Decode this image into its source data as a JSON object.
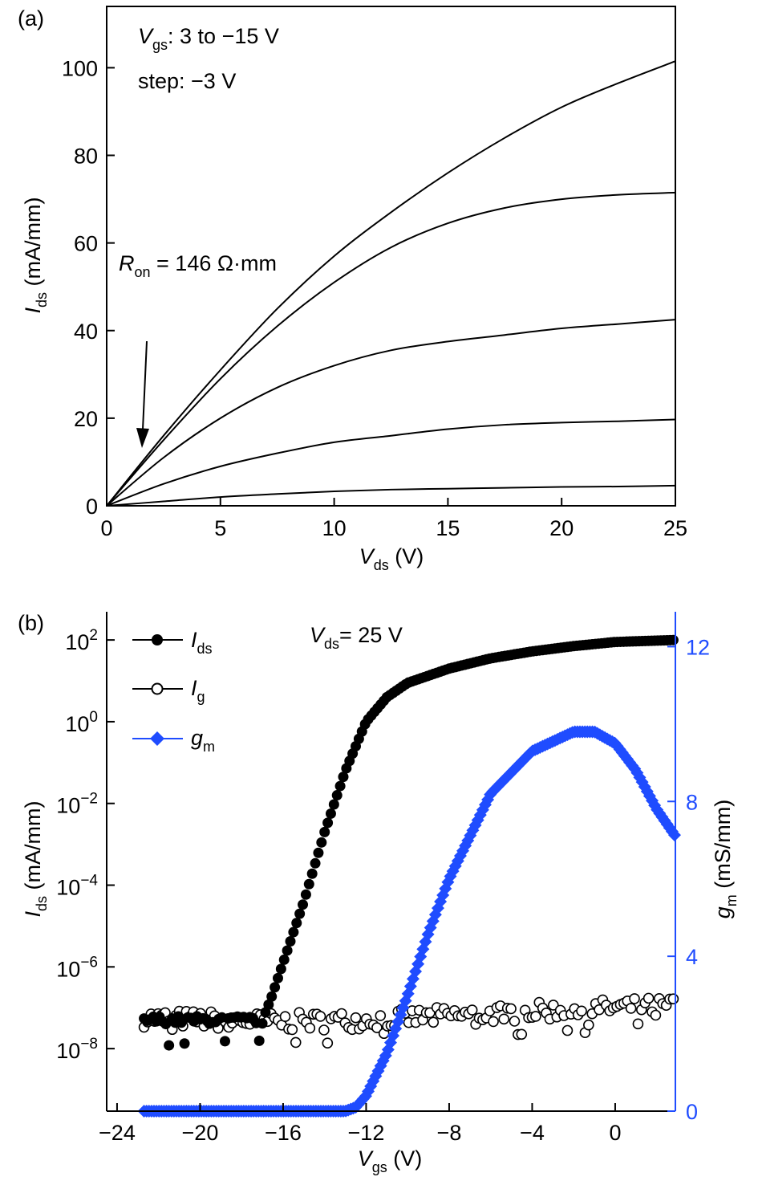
{
  "chart_data": [
    {
      "panel_label": "(a)",
      "type": "line",
      "xlabel": {
        "main": "V",
        "sub": "ds",
        "unit": " (V)"
      },
      "ylabel": {
        "main": "I",
        "sub": "ds",
        "unit": " (mA/mm)"
      },
      "xlim": [
        0,
        25
      ],
      "ylim": [
        0,
        114
      ],
      "xticks": [
        "0",
        "5",
        "10",
        "15",
        "20",
        "25"
      ],
      "yticks": [
        "0",
        "20",
        "40",
        "60",
        "80",
        "100"
      ],
      "annotation_vgs": {
        "main": "V",
        "sub": "gs",
        "rest": ": 3 to −15 V"
      },
      "annotation_step": "step: −3 V",
      "annotation_ron": {
        "main": "R",
        "sub": "on",
        "rest": " = 146 Ω·mm"
      },
      "x": [
        0,
        2.5,
        5,
        7.5,
        10,
        12.5,
        15,
        17.5,
        20,
        22.5,
        25
      ],
      "series": [
        {
          "name": "Vgs=3",
          "values": [
            0,
            16,
            31,
            45,
            57,
            67,
            76,
            84,
            91,
            96.5,
            101.5
          ]
        },
        {
          "name": "Vgs=0",
          "values": [
            0,
            15,
            29,
            41,
            51,
            59,
            64.5,
            68,
            70,
            71,
            71.5
          ]
        },
        {
          "name": "Vgs=-3",
          "values": [
            0,
            11,
            20,
            27,
            32,
            35.5,
            37.5,
            39,
            40.5,
            41.5,
            42.5
          ]
        },
        {
          "name": "Vgs=-6",
          "values": [
            0,
            5,
            9,
            12,
            14.5,
            16,
            17.5,
            18.5,
            19,
            19.3,
            19.7
          ]
        },
        {
          "name": "Vgs=-9",
          "values": [
            0,
            1,
            2,
            2.7,
            3.3,
            3.7,
            3.9,
            4.1,
            4.3,
            4.4,
            4.6
          ]
        },
        {
          "name": "Vgs=-12",
          "values": [
            0,
            0,
            0,
            0,
            0,
            0,
            0,
            0,
            0,
            0,
            0
          ]
        },
        {
          "name": "Vgs=-15",
          "values": [
            0,
            0,
            0,
            0,
            0,
            0,
            0,
            0,
            0,
            0,
            0
          ]
        }
      ]
    },
    {
      "panel_label": "(b)",
      "type": "scatter",
      "xlabel": {
        "main": "V",
        "sub": "gs",
        "unit": " (V)"
      },
      "ylabel_left": {
        "main": "I",
        "sub": "ds",
        "unit": " (mA/mm)"
      },
      "ylabel_right": {
        "main": "g",
        "sub": "m",
        "unit": " (mS/mm)"
      },
      "xlim": [
        -24.5,
        2.9
      ],
      "ylim_left_log10": [
        -9.53,
        2.69
      ],
      "ylim_right": [
        0,
        12.9
      ],
      "xticks": [
        "−24",
        "−20",
        "−16",
        "−12",
        "−8",
        "−4",
        "0"
      ],
      "xtick_values": [
        -24,
        -20,
        -16,
        -12,
        -8,
        -4,
        0
      ],
      "yticks_left_exp": [
        "2",
        "0",
        "−2",
        "−4",
        "−6",
        "−8"
      ],
      "ytick_left_values": [
        2,
        0,
        -2,
        -4,
        -6,
        -8
      ],
      "ytick_left_base": "10",
      "yticks_right": [
        "0",
        "4",
        "8",
        "12"
      ],
      "annotation": {
        "main": "V",
        "sub": "ds",
        "rest": "= 25 V"
      },
      "colors": {
        "gm": "#1f4cff",
        "axis_right": "#1f4cff"
      },
      "series": [
        {
          "name": "Ids",
          "legend": {
            "main": "I",
            "sub": "ds"
          },
          "axis": "left",
          "marker": "filled-circle",
          "x": [
            -22.7,
            -17,
            -16.6,
            -16,
            -15,
            -14,
            -13,
            -12,
            -11,
            -10,
            -8,
            -6,
            -4,
            -2,
            0,
            2.9
          ],
          "log10_values": [
            -7.3,
            -7.3,
            -6.8,
            -5.9,
            -4.4,
            -2.7,
            -1.2,
            0,
            0.6,
            0.95,
            1.3,
            1.55,
            1.72,
            1.85,
            1.95,
            2.0
          ]
        },
        {
          "name": "Ig",
          "legend": {
            "main": "I",
            "sub": "g"
          },
          "axis": "left",
          "marker": "open-circle",
          "x": [
            -22.7,
            -16,
            -12,
            -8,
            -4,
            0,
            2.9
          ],
          "log10_values": [
            -7.25,
            -7.35,
            -7.3,
            -7.2,
            -7.1,
            -7.0,
            -6.95
          ]
        },
        {
          "name": "gm",
          "legend": {
            "main": "g",
            "sub": "m"
          },
          "axis": "right",
          "marker": "diamond",
          "x": [
            -22.7,
            -13,
            -12.5,
            -12,
            -11,
            -10,
            -9,
            -8,
            -6,
            -4,
            -2,
            -1,
            0,
            1,
            2,
            2.9
          ],
          "values": [
            0,
            0,
            0.1,
            0.4,
            1.5,
            3,
            4.6,
            6,
            8.2,
            9.3,
            9.8,
            9.8,
            9.5,
            8.8,
            7.8,
            7.1
          ]
        }
      ]
    }
  ]
}
